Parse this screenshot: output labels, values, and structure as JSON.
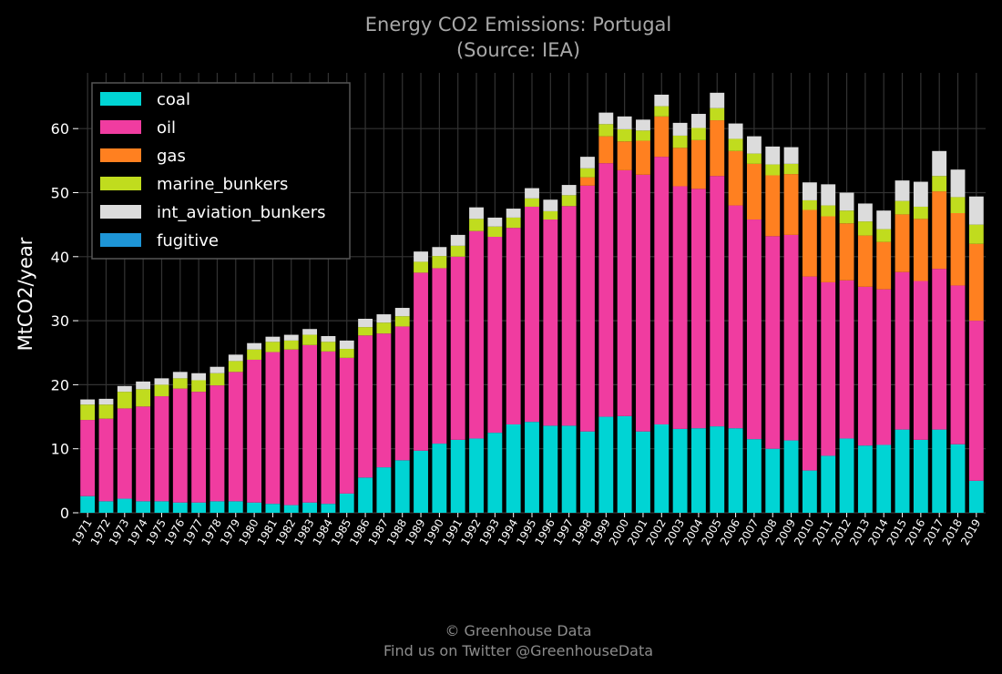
{
  "chart_data": {
    "type": "bar",
    "stacked": true,
    "title": "Energy CO2 Emissions: Portugal",
    "subtitle": "(Source: IEA)",
    "xlabel": "",
    "ylabel": "MtCO2/year",
    "ylim": [
      0,
      68
    ],
    "yticks": [
      0,
      10,
      20,
      30,
      40,
      50,
      60
    ],
    "grid": true,
    "legend_position": "top-left",
    "categories": [
      "1971",
      "1972",
      "1973",
      "1974",
      "1975",
      "1976",
      "1977",
      "1978",
      "1979",
      "1980",
      "1981",
      "1982",
      "1983",
      "1984",
      "1985",
      "1986",
      "1987",
      "1988",
      "1989",
      "1990",
      "1991",
      "1992",
      "1993",
      "1994",
      "1995",
      "1996",
      "1997",
      "1998",
      "1999",
      "2000",
      "2001",
      "2002",
      "2003",
      "2004",
      "2005",
      "2006",
      "2007",
      "2008",
      "2009",
      "2010",
      "2011",
      "2012",
      "2013",
      "2014",
      "2015",
      "2016",
      "2017",
      "2018",
      "2019"
    ],
    "series": [
      {
        "name": "coal",
        "color": "#00d4d4",
        "values": [
          2.6,
          1.8,
          2.2,
          1.8,
          1.8,
          1.6,
          1.6,
          1.8,
          1.8,
          1.6,
          1.4,
          1.2,
          1.6,
          1.4,
          3.0,
          5.5,
          7.1,
          8.2,
          9.7,
          10.8,
          11.4,
          11.6,
          12.5,
          13.8,
          14.2,
          13.6,
          13.6,
          12.7,
          15.0,
          15.1,
          12.7,
          13.8,
          13.1,
          13.2,
          13.5,
          13.2,
          11.5,
          10.0,
          11.3,
          6.6,
          8.9,
          11.6,
          10.5,
          10.6,
          13.0,
          11.4,
          13.0,
          10.7,
          5.0
        ]
      },
      {
        "name": "oil",
        "color": "#f03ca0",
        "values": [
          11.9,
          12.9,
          14.1,
          14.8,
          16.4,
          17.8,
          17.3,
          18.1,
          20.2,
          22.3,
          23.7,
          24.3,
          24.6,
          23.8,
          21.2,
          22.2,
          20.9,
          20.9,
          27.8,
          27.4,
          28.6,
          32.4,
          30.6,
          30.7,
          33.6,
          32.2,
          34.3,
          38.4,
          39.6,
          38.4,
          40.1,
          41.8,
          37.9,
          37.4,
          39.1,
          34.8,
          34.3,
          33.2,
          32.1,
          30.3,
          27.1,
          24.7,
          24.8,
          24.3,
          24.6,
          24.8,
          25.1,
          24.8,
          25.0
        ]
      },
      {
        "name": "gas",
        "color": "#ff8020",
        "values": [
          0,
          0,
          0,
          0,
          0,
          0,
          0,
          0,
          0,
          0,
          0,
          0,
          0,
          0,
          0,
          0,
          0,
          0,
          0,
          0,
          0,
          0,
          0,
          0,
          0,
          0,
          0,
          1.3,
          4.2,
          4.5,
          5.3,
          6.3,
          6.0,
          7.6,
          8.7,
          8.5,
          8.7,
          9.5,
          9.5,
          10.4,
          10.3,
          8.9,
          8.0,
          7.4,
          9.0,
          9.7,
          12.1,
          11.3,
          12.0
        ]
      },
      {
        "name": "marine_bunkers",
        "color": "#c0dc1e",
        "values": [
          2.4,
          2.2,
          2.6,
          2.7,
          1.8,
          1.6,
          1.8,
          1.9,
          1.7,
          1.6,
          1.6,
          1.4,
          1.6,
          1.5,
          1.4,
          1.3,
          1.7,
          1.6,
          1.7,
          1.9,
          1.7,
          1.9,
          1.6,
          1.6,
          1.3,
          1.3,
          1.7,
          1.4,
          1.9,
          1.9,
          1.6,
          1.6,
          1.9,
          1.9,
          1.9,
          1.9,
          1.6,
          1.7,
          1.6,
          1.5,
          1.7,
          2.0,
          2.2,
          2.0,
          2.1,
          1.9,
          2.4,
          2.5,
          3.0
        ]
      },
      {
        "name": "int_aviation_bunkers",
        "color": "#dcdcdc",
        "values": [
          0.8,
          0.9,
          0.9,
          1.2,
          1.0,
          1.0,
          1.1,
          1.0,
          1.0,
          1.0,
          0.8,
          0.9,
          0.9,
          0.9,
          1.3,
          1.3,
          1.3,
          1.3,
          1.6,
          1.4,
          1.7,
          1.8,
          1.4,
          1.4,
          1.6,
          1.8,
          1.6,
          1.8,
          1.8,
          2.0,
          1.7,
          1.8,
          2.0,
          2.2,
          2.4,
          2.4,
          2.7,
          2.8,
          2.6,
          2.8,
          3.3,
          2.8,
          2.8,
          2.9,
          3.2,
          3.9,
          3.9,
          4.3,
          4.4
        ]
      },
      {
        "name": "fugitive",
        "color": "#1e96d8",
        "values": [
          0,
          0,
          0,
          0,
          0,
          0,
          0,
          0,
          0,
          0,
          0,
          0,
          0,
          0,
          0,
          0,
          0,
          0,
          0,
          0,
          0,
          0,
          0,
          0,
          0,
          0,
          0,
          0,
          0,
          0,
          0,
          0,
          0,
          0,
          0,
          0,
          0,
          0,
          0,
          0,
          0,
          0,
          0,
          0,
          0,
          0,
          0,
          0,
          0
        ]
      }
    ]
  },
  "footer": {
    "copyright": "© Greenhouse Data",
    "twitter": "Find us on Twitter @GreenhouseData"
  }
}
